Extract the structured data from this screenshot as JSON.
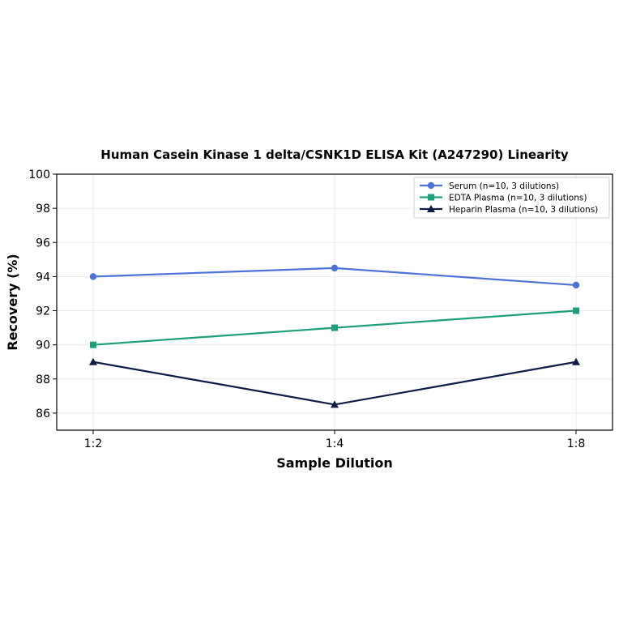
{
  "chart_data": {
    "type": "line",
    "title": "Human Casein Kinase 1 delta/CSNK1D ELISA Kit (A247290) Linearity",
    "xlabel": "Sample Dilution",
    "ylabel": "Recovery (%)",
    "categories": [
      "1:2",
      "1:4",
      "1:8"
    ],
    "ylim": [
      85,
      100
    ],
    "yticks": [
      "86",
      "88",
      "90",
      "92",
      "94",
      "96",
      "98",
      "100"
    ],
    "grid": true,
    "legend_position": "top-right",
    "series": [
      {
        "name": "Serum (n=10, 3 dilutions)",
        "values": [
          94.0,
          94.5,
          93.5
        ],
        "color": "#4d72d8",
        "marker": "circle"
      },
      {
        "name": "EDTA Plasma (n=10, 3 dilutions)",
        "values": [
          90.0,
          91.0,
          92.0
        ],
        "color": "#1e9e7a",
        "marker": "square"
      },
      {
        "name": "Heparin Plasma (n=10, 3 dilutions)",
        "values": [
          89.0,
          86.5,
          89.0
        ],
        "color": "#0d1b45",
        "marker": "triangle"
      }
    ]
  }
}
